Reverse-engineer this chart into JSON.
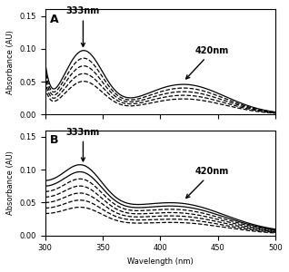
{
  "panel_A_label": "A",
  "panel_B_label": "B",
  "peak1_nm": 333,
  "peak2_nm": 420,
  "xlabel": "Wavelength (nm)",
  "ylabel": "Absorbance (AU)",
  "ylim": [
    0.0,
    0.16
  ],
  "xlim": [
    300,
    500
  ],
  "xticks": [
    300,
    350,
    400,
    450,
    500
  ],
  "yticks": [
    0.0,
    0.05,
    0.1,
    0.15
  ],
  "background_color": "#ffffff",
  "line_color": "#000000",
  "scales_A": [
    1.0,
    0.88,
    0.76,
    0.64,
    0.52
  ],
  "linestyles_A": [
    "-",
    "--",
    "--",
    "--",
    "--"
  ],
  "scales_B": [
    1.0,
    0.9,
    0.8,
    0.7,
    0.6,
    0.5,
    0.4
  ],
  "linestyles_B": [
    "-",
    "-",
    "--",
    "--",
    "--",
    "--",
    "--"
  ]
}
